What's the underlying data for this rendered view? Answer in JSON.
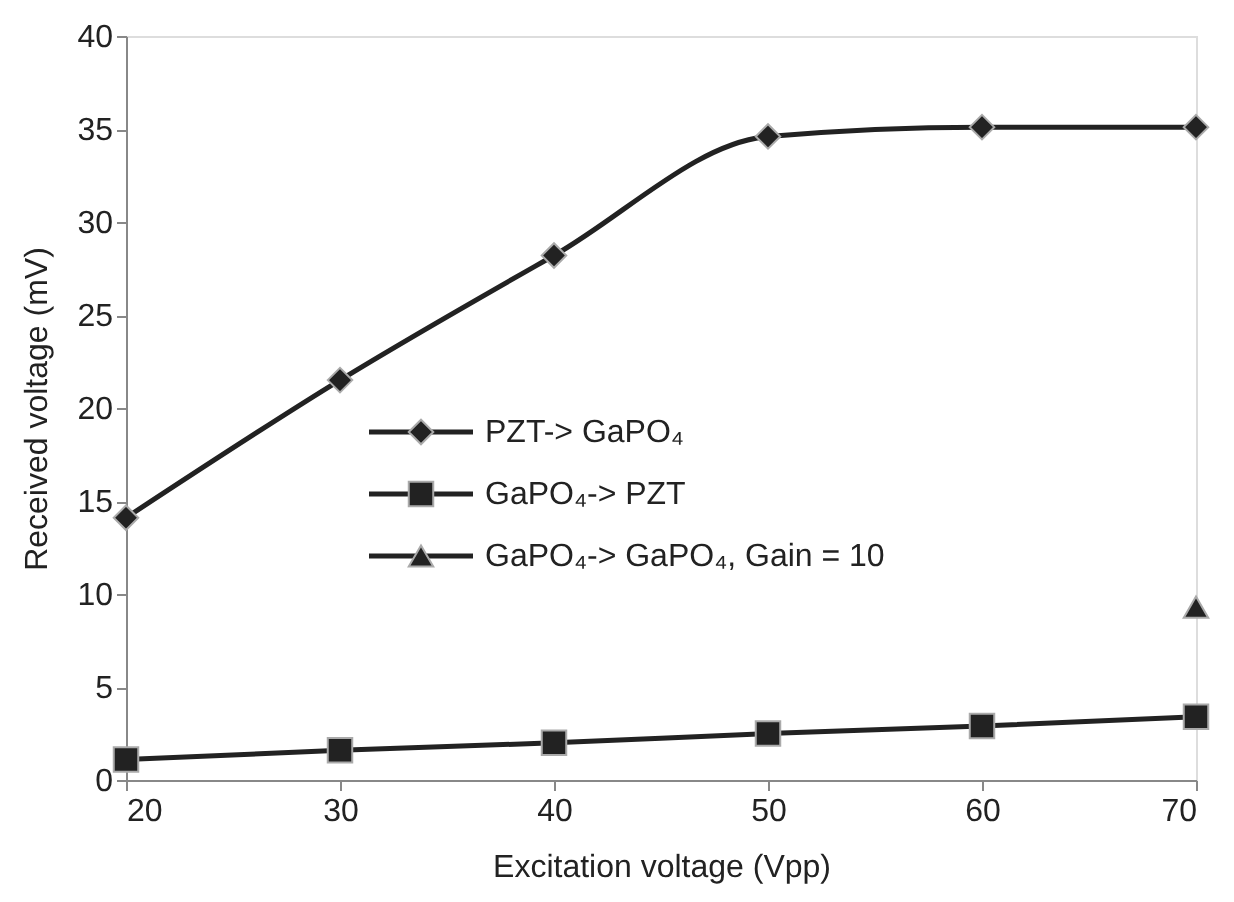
{
  "chart_data": {
    "type": "line",
    "xlabel": "Excitation voltage (Vpp)",
    "ylabel": "Received voltage (mV)",
    "xlim": [
      20,
      70
    ],
    "xticks": [
      20,
      30,
      40,
      50,
      60,
      70
    ],
    "ylim": [
      0,
      40
    ],
    "yticks": [
      0,
      5,
      10,
      15,
      20,
      25,
      30,
      35,
      40
    ],
    "grid": false,
    "legend": "left",
    "line_style": "solid",
    "series": [
      {
        "name": "PZT-> GaPO₄",
        "color": "#222222",
        "marker": "diamond",
        "x": [
          20,
          30,
          40,
          50,
          60,
          70
        ],
        "values": [
          14.1,
          21.5,
          28.2,
          34.6,
          35.1,
          35.1
        ]
      },
      {
        "name": "GaPO₄-> PZT",
        "color": "#222222",
        "marker": "square",
        "x": [
          20,
          30,
          40,
          50,
          60,
          70
        ],
        "values": [
          1.1,
          1.6,
          2.0,
          2.5,
          2.9,
          3.4
        ]
      },
      {
        "name": "GaPO₄-> GaPO₄, Gain = 10",
        "color": "#222222",
        "marker": "triangle",
        "x": [
          70
        ],
        "values": [
          9.3
        ]
      }
    ]
  }
}
